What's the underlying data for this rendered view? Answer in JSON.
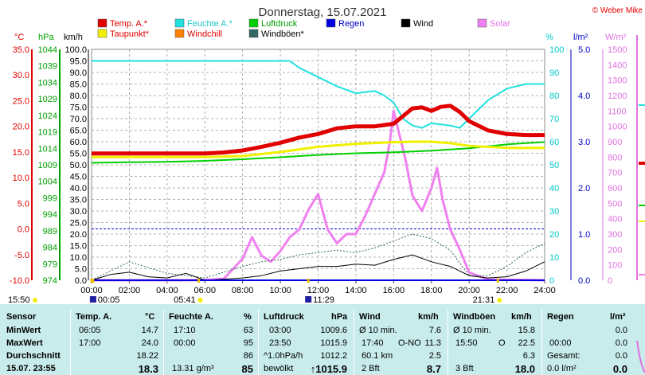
{
  "title": "Donnerstag, 15.07.2021",
  "copyright": "© Weber Mike",
  "colors": {
    "temp": "#e00000",
    "dew": "#f0f000",
    "humidity": "#20e0e0",
    "windchill": "#ff8000",
    "pressure": "#00d000",
    "gust": "#336666",
    "rain": "#0000e0",
    "wind": "#000000",
    "solar": "#f080f0",
    "axisTemp": "#e00000",
    "axisPressure": "#00a000",
    "axisHum": "#00c8c8",
    "axisRain": "#0000c0",
    "axisSolar": "#e070e0"
  },
  "legend": [
    {
      "label": "Temp. A.*",
      "color": "#e00000",
      "text_color": "#e00000"
    },
    {
      "label": "Feuchte A.*",
      "color": "#20e0e0",
      "text_color": "#20c8c8"
    },
    {
      "label": "Luftdruck",
      "color": "#00d000",
      "text_color": "#00a000"
    },
    {
      "label": "Regen",
      "color": "#0000e0",
      "text_color": "#0000c0"
    },
    {
      "label": "Wind",
      "color": "#000000",
      "text_color": "#000000"
    },
    {
      "label": "Solar",
      "color": "#f080f0",
      "text_color": "#e070e0"
    },
    {
      "label": "Taupunkt*",
      "color": "#f0f000",
      "text_color": "#e00000"
    },
    {
      "label": "Windchill",
      "color": "#ff8000",
      "text_color": "#e00000"
    },
    {
      "label": "Windböen*",
      "color": "#336666",
      "text_color": "#000000"
    }
  ],
  "axis_units": {
    "temp": "°C",
    "pressure": "hPa",
    "wind": "km/h",
    "hum": "%",
    "rain": "l/m²",
    "solar": "W/m²"
  },
  "chart_data": {
    "type": "line",
    "title": "Donnerstag, 15.07.2021",
    "x_ticks": [
      "00:00",
      "02:00",
      "04:00",
      "06:00",
      "08:00",
      "10:00",
      "12:00",
      "14:00",
      "16:00",
      "18:00",
      "20:00",
      "22:00",
      "24:00"
    ],
    "axes": {
      "temp_c": {
        "range": [
          -10,
          35
        ],
        "ticks": [
          "35.0",
          "30.0",
          "25.0",
          "20.0",
          "15.0",
          "10.0",
          "5.0",
          "0.0",
          "-5.0",
          "-10.0"
        ]
      },
      "pressure_hpa": {
        "range": [
          974,
          1044
        ],
        "ticks": [
          "1044",
          "1039",
          "1034",
          "1029",
          "1024",
          "1019",
          "1014",
          "1009",
          "1004",
          "999",
          "994",
          "989",
          "984",
          "979",
          "974"
        ]
      },
      "wind_kmh": {
        "range": [
          0,
          100
        ],
        "ticks": [
          "100.0",
          "95.0",
          "90.0",
          "85.0",
          "80.0",
          "75.0",
          "70.0",
          "65.0",
          "60.0",
          "55.0",
          "50.0",
          "45.0",
          "40.0",
          "35.0",
          "30.0",
          "25.0",
          "20.0",
          "15.0",
          "10.0",
          "5.0",
          "0.0"
        ]
      },
      "humidity_pct": {
        "range": [
          0,
          100
        ],
        "ticks": [
          "100",
          "90",
          "80",
          "70",
          "60",
          "50",
          "40",
          "30",
          "20",
          "10",
          "0"
        ]
      },
      "rain_lm2": {
        "range": [
          0,
          5
        ],
        "ticks": [
          "5.0",
          "4.0",
          "3.0",
          "2.0",
          "1.0",
          "0.0"
        ]
      },
      "solar_wm2": {
        "range": [
          0,
          1500
        ],
        "ticks": [
          "1500",
          "1400",
          "1300",
          "1200",
          "1100",
          "1000",
          "900",
          "800",
          "700",
          "600",
          "500",
          "400",
          "300",
          "200",
          "100",
          "0"
        ]
      }
    },
    "series": [
      {
        "name": "Temp. A.*",
        "axis": "temp_c",
        "x": [
          0,
          4,
          6,
          7,
          8,
          9,
          10,
          11,
          12,
          13,
          14,
          15,
          16,
          16.5,
          17,
          17.5,
          18,
          18.5,
          19,
          19.5,
          20,
          21,
          22,
          23,
          24
        ],
        "y": [
          14.7,
          14.7,
          14.7,
          14.9,
          15.3,
          16,
          16.8,
          17.8,
          18.5,
          19.6,
          20,
          20,
          20.5,
          22,
          23.5,
          23.7,
          23,
          23.8,
          24,
          22.8,
          21,
          19.2,
          18.5,
          18.3,
          18.3
        ]
      },
      {
        "name": "Taupunkt*",
        "axis": "temp_c",
        "x": [
          0,
          6,
          8,
          10,
          12,
          14,
          16,
          17,
          18,
          19,
          20,
          22,
          24
        ],
        "y": [
          14,
          14,
          14.2,
          15,
          16,
          16.6,
          16.9,
          17,
          17,
          16.7,
          16.2,
          15.8,
          15.8
        ]
      },
      {
        "name": "Feuchte A.*",
        "axis": "humidity_pct",
        "x": [
          0,
          5,
          8,
          10,
          10.5,
          11,
          12,
          13,
          14,
          15,
          15.5,
          16,
          16.5,
          17,
          17.5,
          18,
          19,
          19.5,
          20,
          21,
          22,
          23,
          24
        ],
        "y": [
          95,
          95,
          95,
          95,
          95,
          92,
          88,
          84,
          81,
          82,
          80,
          77,
          70,
          67,
          66,
          68,
          67,
          66,
          70,
          78,
          83,
          85,
          85
        ]
      },
      {
        "name": "Luftdruck",
        "axis": "pressure_hpa",
        "x": [
          0,
          2,
          4,
          6,
          8,
          10,
          12,
          14,
          16,
          18,
          20,
          22,
          24
        ],
        "y": [
          1009.6,
          1009.8,
          1009.9,
          1010.2,
          1010.7,
          1011.3,
          1012,
          1012.5,
          1012.8,
          1013.3,
          1014,
          1015.2,
          1015.9
        ]
      },
      {
        "name": "Solar",
        "axis": "solar_wm2",
        "x": [
          0,
          5,
          6,
          7,
          8,
          8.5,
          9,
          9.5,
          10,
          10.5,
          11,
          11.5,
          12,
          12.5,
          13,
          13.5,
          14,
          14.5,
          15,
          15.5,
          15.8,
          16,
          16.3,
          16.6,
          17,
          17.5,
          18,
          18.3,
          18.6,
          19,
          19.5,
          20,
          21,
          24
        ],
        "y": [
          0,
          0,
          2,
          10,
          140,
          280,
          160,
          120,
          190,
          280,
          330,
          460,
          560,
          330,
          240,
          300,
          300,
          420,
          560,
          700,
          900,
          1100,
          950,
          800,
          550,
          450,
          600,
          730,
          520,
          330,
          200,
          50,
          5,
          0
        ]
      },
      {
        "name": "Wind",
        "axis": "wind_kmh",
        "x": [
          0,
          1,
          2,
          3,
          4,
          5,
          6,
          7,
          8,
          9,
          10,
          11,
          12,
          13,
          14,
          15,
          16,
          17,
          18,
          19,
          20,
          21,
          22,
          23,
          24
        ],
        "y": [
          0,
          2.5,
          3.5,
          1.5,
          1,
          3,
          0,
          0.5,
          1,
          2,
          4,
          5,
          6,
          6,
          7,
          6.5,
          9,
          11,
          8,
          6,
          2,
          1,
          1.5,
          4,
          8
        ]
      },
      {
        "name": "Windböen*",
        "axis": "wind_kmh",
        "x": [
          0,
          2,
          4,
          6,
          8,
          9,
          10,
          11,
          12,
          13,
          14,
          15,
          16,
          17,
          18,
          19,
          20,
          21,
          22,
          23,
          24
        ],
        "y": [
          0,
          8,
          3,
          1,
          6,
          8,
          9,
          11,
          12,
          13,
          12,
          14,
          17,
          20,
          18,
          13,
          2,
          2,
          6,
          12,
          16
        ]
      },
      {
        "name": "Regen",
        "axis": "rain_lm2",
        "x": [
          0,
          24
        ],
        "y": [
          0,
          0
        ]
      }
    ],
    "time_markers": [
      {
        "label": "15:50",
        "x": 0
      },
      {
        "label": "00:05",
        "x": 0.08
      },
      {
        "label": "05:41",
        "x": 5.68
      },
      {
        "label": "11:29",
        "x": 11.48
      },
      {
        "label": "21:31",
        "x": 21.52
      }
    ],
    "legend_position": "top"
  },
  "table": {
    "row_labels": [
      "Sensor",
      "MinWert",
      "MaxWert",
      "Durchschnitt",
      "15.07. 23:55"
    ],
    "temp": {
      "title": "Temp. A.",
      "unit": "°C",
      "min_time": "06:05",
      "min": "14.7",
      "max_time": "17:00",
      "max": "24.0",
      "avg": "18.22",
      "current": "18.3"
    },
    "hum": {
      "title": "Feuchte A.",
      "unit": "%",
      "min_time": "17:10",
      "min": "63",
      "max_time": "00:00",
      "max": "95",
      "avg": "86",
      "abs": "13.31 g/m³",
      "current": "85"
    },
    "press": {
      "title": "Luftdruck",
      "unit": "hPa",
      "min_time": "03:00",
      "min": "1009.6",
      "max_time": "23:50",
      "max": "1015.9",
      "trend_label": "^1.0hPa/h",
      "trend": "1012.2",
      "weather": "bewölkt",
      "current": "↑1015.9"
    },
    "wind": {
      "title": "Wind",
      "unit": "km/h",
      "min_label": "Ø 10 min.",
      "min": "7.6",
      "max_time": "17:40",
      "max_dir": "O-NO",
      "max": "11.3",
      "dist": "60.1 km",
      "avg": "2.5",
      "bft": "2 Bft",
      "current": "8.7"
    },
    "gust": {
      "title": "Windböen",
      "unit": "km/h",
      "min_label": "Ø 10 min.",
      "min": "15.8",
      "max_time": "15:50",
      "max_dir": "O",
      "max": "22.5",
      "avg": "6.3",
      "bft": "3 Bft",
      "current": "18.0"
    },
    "rain": {
      "title": "Regen",
      "unit": "l/m²",
      "min": "0.0",
      "max_time": "00:00",
      "max": "0.0",
      "total_label": "Gesamt:",
      "total": "0.0",
      "hour": "0.0 l/m²",
      "current": "0.0"
    }
  }
}
